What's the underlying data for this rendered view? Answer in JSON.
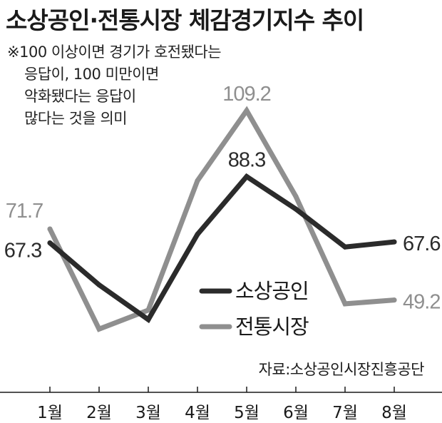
{
  "chart_data": {
    "type": "line",
    "title": "소상공인·전통시장 체감경기지수 추이",
    "note": [
      "※100 이상이면 경기가 호전됐다는",
      "응답이, 100 미만이면",
      "악화됐다는 응답이",
      "많다는 것을 의미"
    ],
    "categories": [
      "1월",
      "2월",
      "3월",
      "4월",
      "5월",
      "6월",
      "7월",
      "8월"
    ],
    "series": [
      {
        "name": "소상공인",
        "color": "#2b2b2b",
        "values": [
          67.3,
          54,
          43,
          70,
          88.3,
          78,
          66,
          67.6
        ]
      },
      {
        "name": "전통시장",
        "color": "#8f8f8f",
        "values": [
          71.7,
          40,
          46,
          87,
          109.2,
          82,
          48,
          49.2
        ]
      }
    ],
    "data_labels": [
      {
        "series": 1,
        "index": 0,
        "text": "71.7"
      },
      {
        "series": 0,
        "index": 0,
        "text": "67.3"
      },
      {
        "series": 1,
        "index": 4,
        "text": "109.2"
      },
      {
        "series": 0,
        "index": 4,
        "text": "88.3"
      },
      {
        "series": 0,
        "index": 7,
        "text": "67.6"
      },
      {
        "series": 1,
        "index": 7,
        "text": "49.2"
      }
    ],
    "source": "자료:소상공인시장진흥공단",
    "ylim": [
      38,
      112
    ],
    "grid": false,
    "legend_position": "right-middle"
  }
}
